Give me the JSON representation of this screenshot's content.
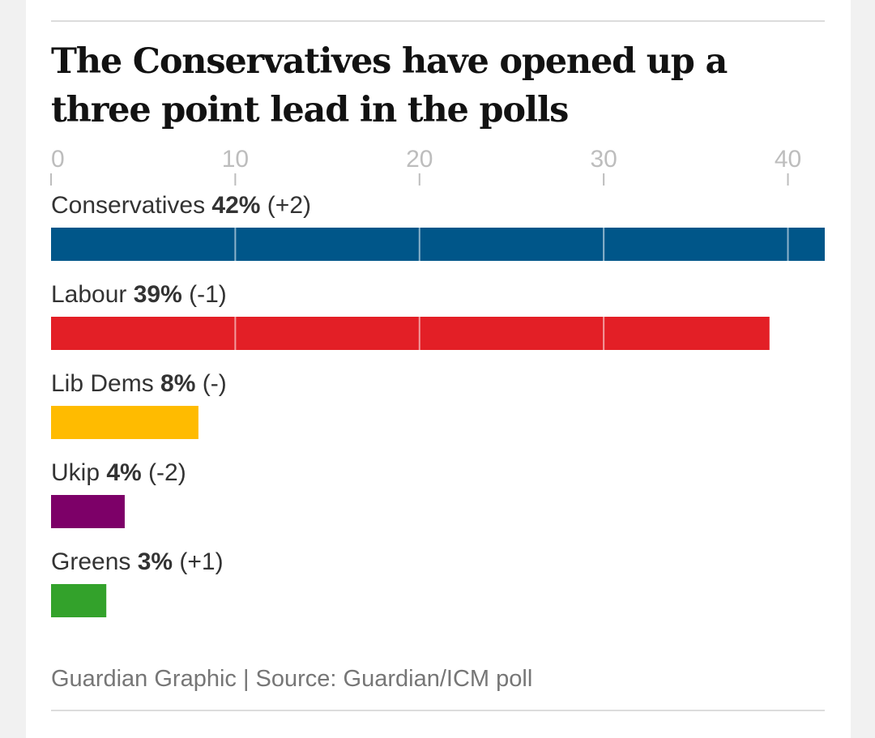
{
  "chart_data": {
    "type": "bar",
    "orientation": "horizontal",
    "title": "The Conservatives have opened up a three point lead in the polls",
    "xlim": [
      0,
      42
    ],
    "ticks": [
      0,
      10,
      20,
      30,
      40
    ],
    "gridlines": true,
    "categories": [
      "Conservatives",
      "Labour",
      "Lib Dems",
      "Ukip",
      "Greens"
    ],
    "values": [
      42,
      39,
      8,
      4,
      3
    ],
    "value_labels": [
      "42%",
      "39%",
      "8%",
      "4%",
      "3%"
    ],
    "changes": [
      "(+2)",
      "(-1)",
      "(-)",
      "(-2)",
      "(+1)"
    ],
    "colors": [
      "#005689",
      "#e31f26",
      "#ffbb00",
      "#7d0068",
      "#33a22b"
    ]
  },
  "footer": {
    "source": "Guardian Graphic | Source: Guardian/ICM poll"
  }
}
